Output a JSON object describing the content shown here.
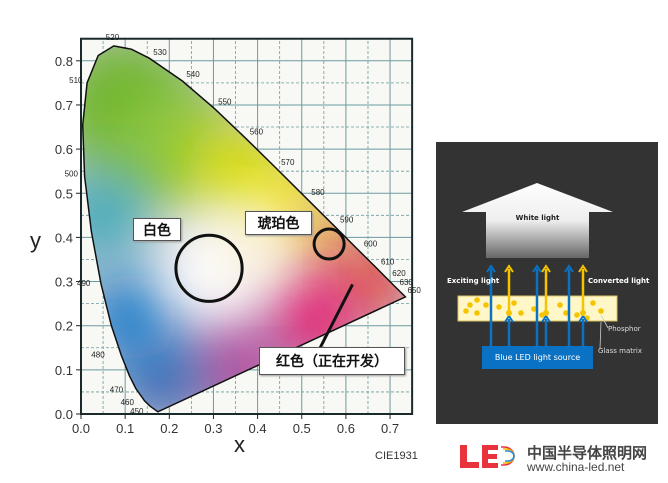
{
  "chart_data": {
    "type": "chromaticity-diagram",
    "title": "",
    "xlabel": "x",
    "ylabel": "y",
    "xlim": [
      0,
      0.75
    ],
    "ylim": [
      0,
      0.85
    ],
    "x_ticks": [
      "0.0",
      "0.1",
      "0.2",
      "0.3",
      "0.4",
      "0.5",
      "0.6",
      "0.7"
    ],
    "y_ticks": [
      "0.0",
      "0.1",
      "0.2",
      "0.3",
      "0.4",
      "0.5",
      "0.6",
      "0.7",
      "0.8"
    ],
    "grid": {
      "major": 0.1,
      "minor_dashed": 0.05
    },
    "caption": "CIE1931",
    "spectral_locus": [
      [
        380,
        0.1741,
        0.005
      ],
      [
        450,
        0.1566,
        0.0177
      ],
      [
        460,
        0.144,
        0.0297
      ],
      [
        470,
        0.1241,
        0.0578
      ],
      [
        475,
        0.1096,
        0.0868
      ],
      [
        480,
        0.0913,
        0.1327
      ],
      [
        485,
        0.0687,
        0.2007
      ],
      [
        490,
        0.0454,
        0.295
      ],
      [
        495,
        0.0235,
        0.4127
      ],
      [
        500,
        0.0082,
        0.5384
      ],
      [
        505,
        0.0039,
        0.6548
      ],
      [
        510,
        0.0139,
        0.7502
      ],
      [
        515,
        0.0389,
        0.812
      ],
      [
        520,
        0.0743,
        0.8338
      ],
      [
        525,
        0.1142,
        0.8262
      ],
      [
        530,
        0.1547,
        0.8059
      ],
      [
        540,
        0.2296,
        0.7543
      ],
      [
        550,
        0.3016,
        0.6923
      ],
      [
        560,
        0.3731,
        0.6245
      ],
      [
        570,
        0.4441,
        0.5547
      ],
      [
        580,
        0.5125,
        0.4866
      ],
      [
        590,
        0.5752,
        0.4242
      ],
      [
        600,
        0.627,
        0.3725
      ],
      [
        610,
        0.6658,
        0.334
      ],
      [
        620,
        0.6915,
        0.3083
      ],
      [
        630,
        0.7079,
        0.292
      ],
      [
        650,
        0.726,
        0.274
      ],
      [
        700,
        0.7347,
        0.2653
      ]
    ],
    "wavelength_labels": [
      "450",
      "460",
      "470",
      "480",
      "490",
      "500",
      "510",
      "520",
      "530",
      "540",
      "550",
      "560",
      "570",
      "580",
      "590",
      "600",
      "610",
      "620",
      "630",
      "650"
    ],
    "regions": [
      {
        "label": "白色",
        "x": 0.29,
        "y": 0.33,
        "radius": 0.075
      },
      {
        "label": "琥珀色",
        "x": 0.562,
        "y": 0.385,
        "radius": 0.034
      },
      {
        "label": "红色（正在开发）",
        "pointer_to": [
          0.615,
          0.28
        ]
      }
    ]
  },
  "phosphor_diagram": {
    "white_light": "White light",
    "exciting_light": "Exciting light",
    "converted_light": "Converted light",
    "phosphor": "Phosphor",
    "glass_matrix": "Glass matrix",
    "source": "Blue LED light source",
    "colors": {
      "background": "#333333",
      "blue": "#0a72c4",
      "yellow": "#f5c400",
      "glass": "#fff7c8"
    }
  },
  "logo": {
    "mark": "LED",
    "name": "中国半导体照明网",
    "url": "www.china-led.net"
  }
}
